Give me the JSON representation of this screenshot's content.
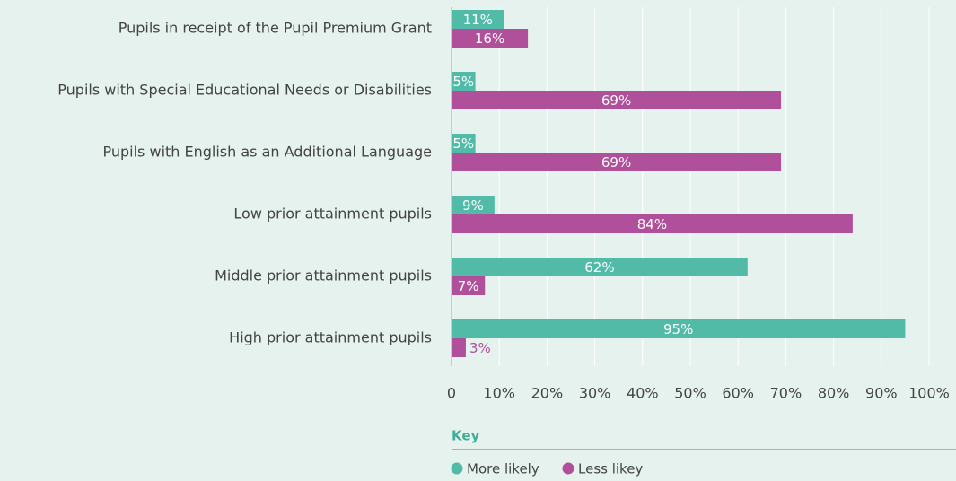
{
  "chart_data": {
    "type": "bar",
    "orientation": "horizontal",
    "categories": [
      "Pupils in receipt of the Pupil Premium Grant",
      "Pupils with Special Educational Needs or Disabilities",
      "Pupils with English as an Additional Language",
      "Low prior attainment pupils",
      "Middle prior attainment pupils",
      "High prior attainment pupils"
    ],
    "series": [
      {
        "name": "More likely",
        "color": "#52bba8",
        "values": [
          11,
          5,
          5,
          9,
          62,
          95
        ],
        "value_labels": [
          "11%",
          "5%",
          "5%",
          "9%",
          "62%",
          "95%"
        ]
      },
      {
        "name": "Less likey",
        "color": "#b0509b",
        "values": [
          16,
          69,
          69,
          84,
          7,
          3
        ],
        "value_labels": [
          "16%",
          "69%",
          "69%",
          "84%",
          "7%",
          "3%"
        ]
      }
    ],
    "xlim": [
      0,
      100
    ],
    "xticks": [
      0,
      {
        "value": 10,
        "label": "10%"
      },
      {
        "value": 20,
        "label": "20%"
      },
      {
        "value": 30,
        "label": "30%"
      },
      {
        "value": 40,
        "label": "40%"
      },
      {
        "value": 50,
        "label": "50%"
      },
      {
        "value": 60,
        "label": "60%"
      },
      {
        "value": 70,
        "label": "70%"
      },
      {
        "value": 80,
        "label": "80%"
      },
      {
        "value": 90,
        "label": "90%"
      },
      {
        "value": 100,
        "label": "100%"
      }
    ],
    "grid": true,
    "legend_title": "Key"
  }
}
